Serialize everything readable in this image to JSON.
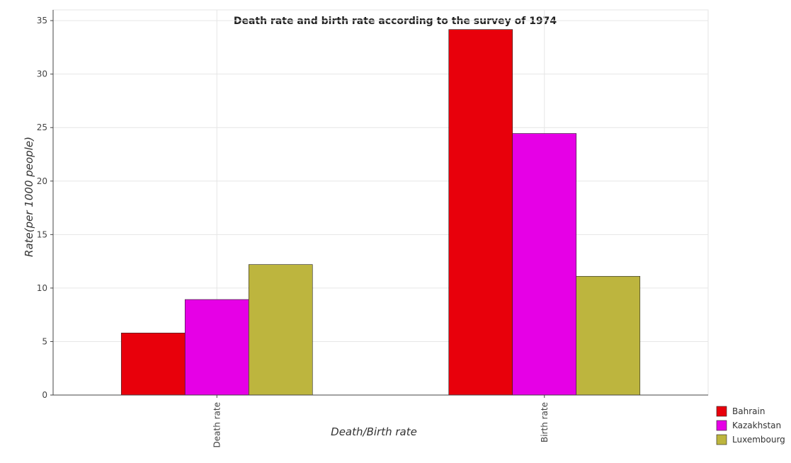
{
  "chart_data": {
    "type": "bar",
    "title": "Death rate and birth rate according to the survey of 1974",
    "xlabel": "Death/Birth rate",
    "ylabel": "Rate(per 1000 people)",
    "categories": [
      "Death rate",
      "Birth rate"
    ],
    "series": [
      {
        "name": "Bahrain",
        "color": "#e8000b",
        "values": [
          5.8,
          34.17
        ]
      },
      {
        "name": "Kazakhstan",
        "color": "#e600e6",
        "values": [
          8.93,
          24.45
        ]
      },
      {
        "name": "Luxembourg",
        "color": "#bdb53e",
        "values": [
          12.2,
          11.1
        ]
      }
    ],
    "ylim": [
      0,
      36
    ],
    "yticks": [
      0,
      5,
      10,
      15,
      20,
      25,
      30,
      35
    ],
    "grid": true,
    "legend": "bottom-right"
  }
}
